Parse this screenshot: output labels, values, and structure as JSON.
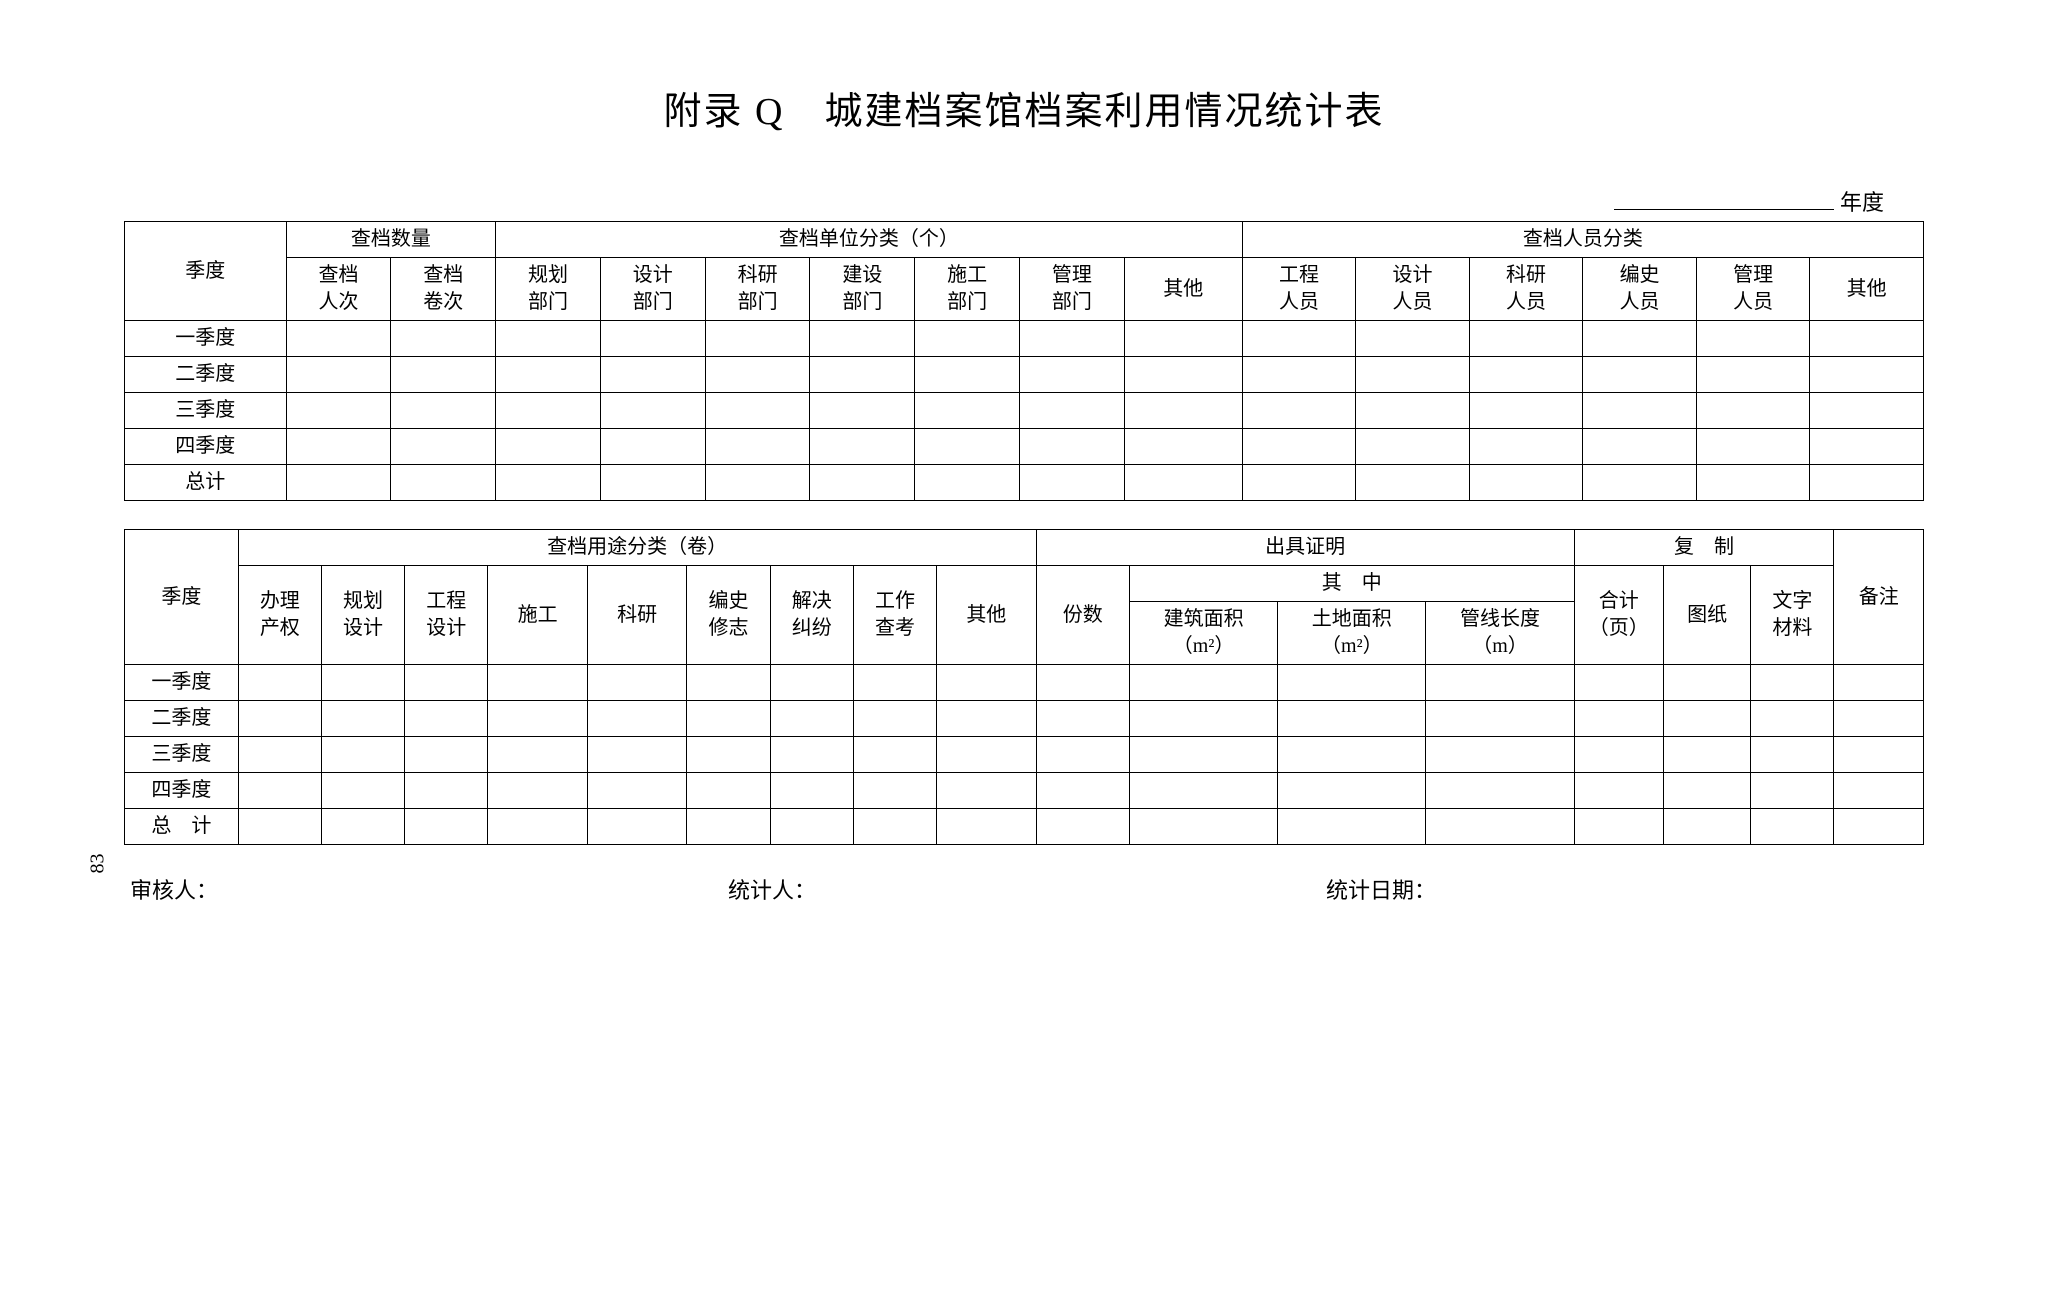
{
  "title": "附录 Q　城建档案馆档案利用情况统计表",
  "year_suffix": "年度",
  "page_number": "83",
  "table1": {
    "quarter_header": "季度",
    "g1": "查档数量",
    "g1_cols": [
      "查档\n人次",
      "查档\n卷次"
    ],
    "g2": "查档单位分类（个）",
    "g2_cols": [
      "规划\n部门",
      "设计\n部门",
      "科研\n部门",
      "建设\n部门",
      "施工\n部门",
      "管理\n部门",
      "其他"
    ],
    "g3": "查档人员分类",
    "g3_cols": [
      "工程\n人员",
      "设计\n人员",
      "科研\n人员",
      "编史\n人员",
      "管理\n人员",
      "其他"
    ],
    "rows": [
      "一季度",
      "二季度",
      "三季度",
      "四季度",
      "总计"
    ]
  },
  "table2": {
    "quarter_header": "季度",
    "g1": "查档用途分类（卷）",
    "g1_cols": [
      "办理\n产权",
      "规划\n设计",
      "工程\n设计",
      "施工",
      "科研",
      "编史\n修志",
      "解决\n纠纷",
      "工作\n查考",
      "其他"
    ],
    "g2": "出具证明",
    "g2_count": "份数",
    "g2_sub": "其　中",
    "g2_sub_cols": [
      "建筑面积\n（m²）",
      "土地面积\n（m²）",
      "管线长度\n（m）"
    ],
    "g3": "复　制",
    "g3_cols": [
      "合计\n（页）",
      "图纸",
      "文字\n材料"
    ],
    "notes": "备注",
    "rows": [
      "一季度",
      "二季度",
      "三季度",
      "四季度",
      "总　计"
    ]
  },
  "footer": {
    "reviewer": "审核人：",
    "preparer": "统计人：",
    "date": "统计日期："
  }
}
